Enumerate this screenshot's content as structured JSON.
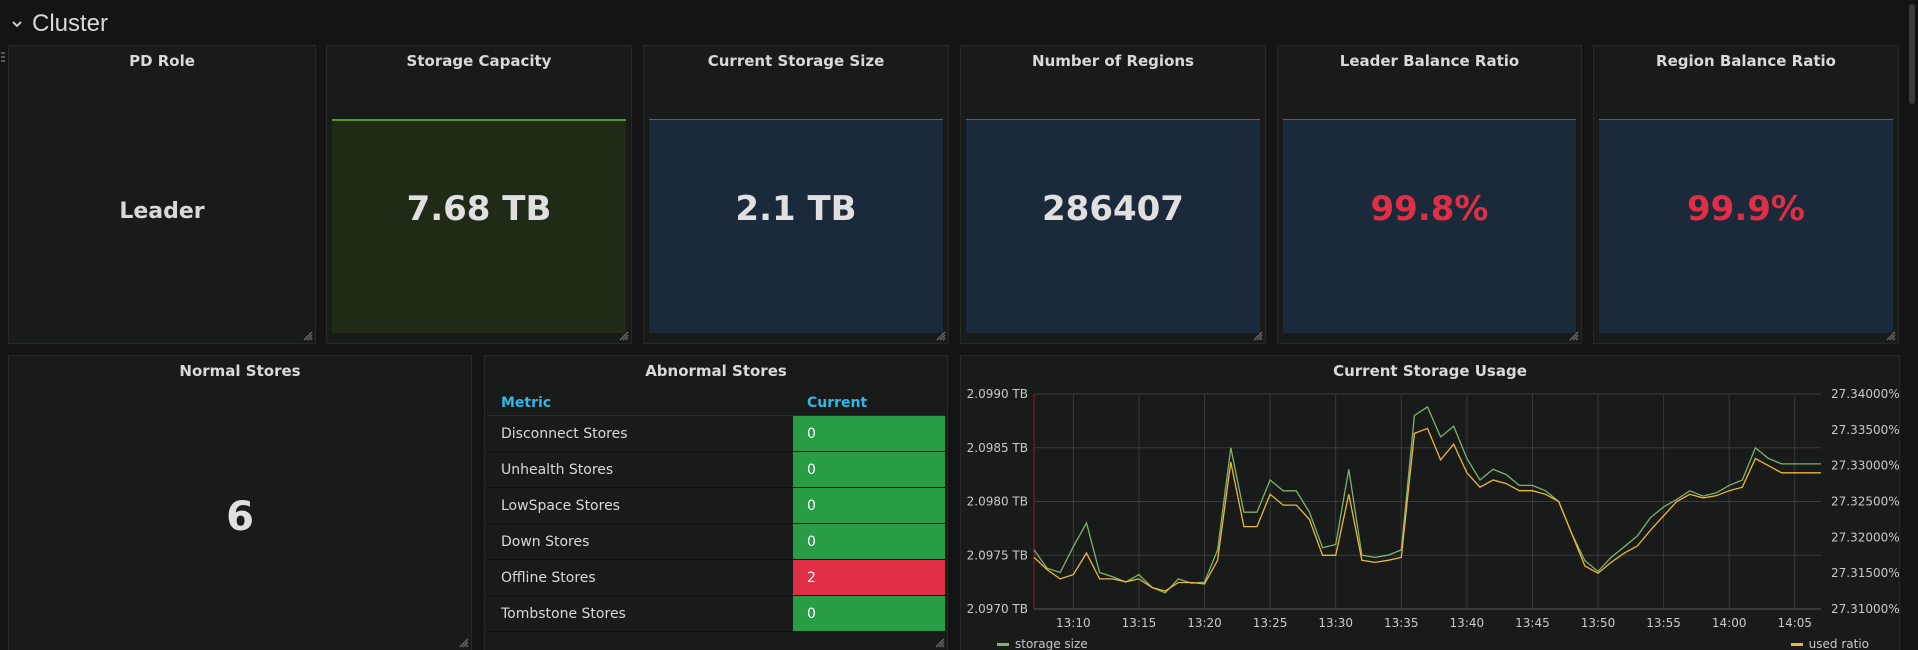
{
  "row": {
    "title": "Cluster"
  },
  "stats": [
    {
      "title": "PD Role",
      "value": "Leader"
    },
    {
      "title": "Storage Capacity",
      "value": "7.68 TB"
    },
    {
      "title": "Current Storage Size",
      "value": "2.1 TB"
    },
    {
      "title": "Number of Regions",
      "value": "286407"
    },
    {
      "title": "Leader Balance Ratio",
      "value": "99.8%"
    },
    {
      "title": "Region Balance Ratio",
      "value": "99.9%"
    }
  ],
  "normal_stores": {
    "title": "Normal Stores",
    "value": "6"
  },
  "abnormal": {
    "title": "Abnormal Stores",
    "col_metric": "Metric",
    "col_current": "Current",
    "rows": [
      {
        "metric": "Disconnect Stores",
        "value": "0",
        "status": "ok"
      },
      {
        "metric": "Unhealth Stores",
        "value": "0",
        "status": "ok"
      },
      {
        "metric": "LowSpace Stores",
        "value": "0",
        "status": "ok"
      },
      {
        "metric": "Down Stores",
        "value": "0",
        "status": "ok"
      },
      {
        "metric": "Offline Stores",
        "value": "2",
        "status": "bad"
      },
      {
        "metric": "Tombstone Stores",
        "value": "0",
        "status": "ok"
      }
    ]
  },
  "colors": {
    "ok": "#299c46",
    "bad": "#e02f44",
    "red_text": "#e02f44",
    "green_line": "#7eb26d",
    "yellow_line": "#eab839"
  },
  "chart_data": {
    "type": "line",
    "title": "Current Storage Usage",
    "x": [
      "13:07",
      "13:08",
      "13:09",
      "13:10",
      "13:11",
      "13:12",
      "13:13",
      "13:14",
      "13:15",
      "13:16",
      "13:17",
      "13:18",
      "13:19",
      "13:20",
      "13:21",
      "13:22",
      "13:23",
      "13:24",
      "13:25",
      "13:26",
      "13:27",
      "13:28",
      "13:29",
      "13:30",
      "13:31",
      "13:32",
      "13:33",
      "13:34",
      "13:35",
      "13:36",
      "13:37",
      "13:38",
      "13:39",
      "13:40",
      "13:41",
      "13:42",
      "13:43",
      "13:44",
      "13:45",
      "13:46",
      "13:47",
      "13:48",
      "13:49",
      "13:50",
      "13:51",
      "13:52",
      "13:53",
      "13:54",
      "13:55",
      "13:56",
      "13:57",
      "13:58",
      "13:59",
      "14:00",
      "14:01",
      "14:02",
      "14:03",
      "14:04",
      "14:05",
      "14:06",
      "14:07"
    ],
    "x_ticks": [
      "13:10",
      "13:15",
      "13:20",
      "13:25",
      "13:30",
      "13:35",
      "13:40",
      "13:45",
      "13:50",
      "13:55",
      "14:00",
      "14:05"
    ],
    "ylim_left": [
      2.097,
      2.099
    ],
    "ylabels_left": [
      "2.0970 TB",
      "2.0975 TB",
      "2.0980 TB",
      "2.0985 TB",
      "2.0990 TB"
    ],
    "ylim_right": [
      27.31,
      27.34
    ],
    "ylabels_right": [
      "27.31000%",
      "27.31500%",
      "27.32000%",
      "27.32500%",
      "27.33000%",
      "27.33500%",
      "27.34000%"
    ],
    "grid": true,
    "series": [
      {
        "name": "storage size",
        "axis": "left",
        "values": [
          2.09755,
          2.09738,
          2.09734,
          2.09758,
          2.0978,
          2.09734,
          2.0973,
          2.09725,
          2.09732,
          2.0972,
          2.09715,
          2.09728,
          2.09724,
          2.09725,
          2.09755,
          2.0985,
          2.0979,
          2.0979,
          2.0982,
          2.0981,
          2.0981,
          2.0979,
          2.09757,
          2.0976,
          2.0983,
          2.0975,
          2.09748,
          2.0975,
          2.09755,
          2.0988,
          2.09888,
          2.0986,
          2.0987,
          2.0984,
          2.0982,
          2.0983,
          2.09825,
          2.09815,
          2.09815,
          2.0981,
          2.098,
          2.0977,
          2.09745,
          2.09735,
          2.09748,
          2.09758,
          2.09768,
          2.09785,
          2.09795,
          2.09802,
          2.0981,
          2.09805,
          2.09808,
          2.09815,
          2.0982,
          2.0985,
          2.0984,
          2.09835,
          2.09835,
          2.09835,
          2.09835
        ]
      },
      {
        "name": "used ratio",
        "axis": "right",
        "values": [
          27.3172,
          27.3155,
          27.3142,
          27.3148,
          27.3178,
          27.3142,
          27.3142,
          27.3138,
          27.3142,
          27.313,
          27.3125,
          27.3137,
          27.3137,
          27.3135,
          27.3168,
          27.3305,
          27.3215,
          27.3215,
          27.326,
          27.3245,
          27.3245,
          27.3225,
          27.3175,
          27.3175,
          27.326,
          27.3168,
          27.3165,
          27.3168,
          27.3172,
          27.3345,
          27.3352,
          27.3308,
          27.333,
          27.329,
          27.327,
          27.328,
          27.3275,
          27.3265,
          27.3265,
          27.326,
          27.325,
          27.3205,
          27.316,
          27.315,
          27.3165,
          27.3178,
          27.3188,
          27.321,
          27.323,
          27.325,
          27.326,
          27.3255,
          27.3258,
          27.3265,
          27.327,
          27.331,
          27.33,
          27.329,
          27.329,
          27.329,
          27.329
        ]
      }
    ],
    "legend": [
      {
        "name": "storage size",
        "placement": "bottom-left"
      },
      {
        "name": "used ratio",
        "placement": "bottom-right"
      }
    ]
  }
}
